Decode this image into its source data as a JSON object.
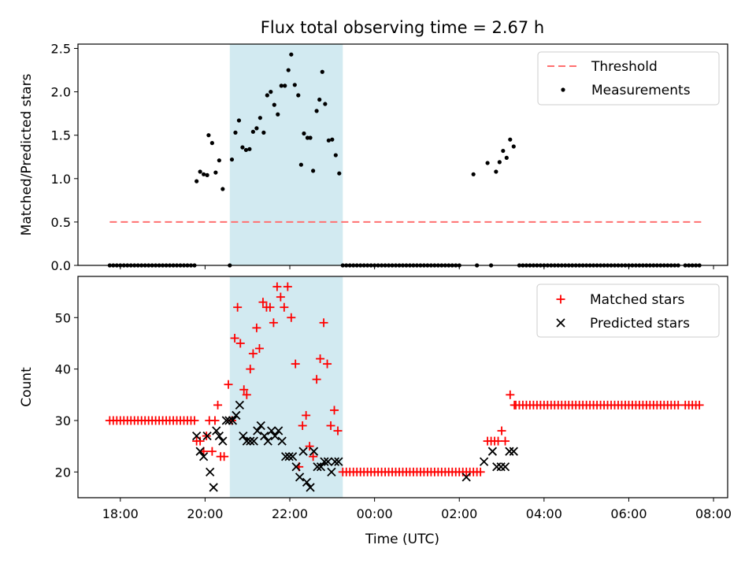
{
  "figure_title": "Flux total observing time = 2.67 h",
  "x_label": "Time (UTC)",
  "highlight": {
    "start": "20:35",
    "end": "23:15",
    "color": "#add8e6"
  },
  "x_ticks": [
    "18:00",
    "20:00",
    "22:00",
    "00:00",
    "02:00",
    "04:00",
    "06:00",
    "08:00"
  ],
  "chart_data": [
    {
      "type": "scatter",
      "ylabel": "Matched/Predicted stars",
      "xlim": [
        "17:00",
        "08:20"
      ],
      "ylim": [
        0,
        2.55
      ],
      "y_ticks": [
        "0.0",
        "0.5",
        "1.0",
        "1.5",
        "2.0",
        "2.5"
      ],
      "legend_position": "top-right",
      "threshold": {
        "name": "Threshold",
        "value": 0.5,
        "x_range": [
          "17:45",
          "07:45"
        ],
        "color": "#ff7070"
      },
      "measurements": {
        "name": "Measurements",
        "color": "#000000",
        "nonzero_points": [
          [
            "19:48",
            0.97
          ],
          [
            "19:53",
            1.08
          ],
          [
            "19:58",
            1.05
          ],
          [
            "20:03",
            1.04
          ],
          [
            "20:05",
            1.5
          ],
          [
            "20:10",
            1.41
          ],
          [
            "20:15",
            1.07
          ],
          [
            "20:20",
            1.21
          ],
          [
            "20:25",
            0.88
          ],
          [
            "20:38",
            1.22
          ],
          [
            "20:43",
            1.53
          ],
          [
            "20:48",
            1.67
          ],
          [
            "20:53",
            1.36
          ],
          [
            "20:58",
            1.33
          ],
          [
            "21:03",
            1.34
          ],
          [
            "21:08",
            1.54
          ],
          [
            "21:13",
            1.58
          ],
          [
            "21:18",
            1.7
          ],
          [
            "21:23",
            1.53
          ],
          [
            "21:28",
            1.96
          ],
          [
            "21:33",
            2.0
          ],
          [
            "21:38",
            1.85
          ],
          [
            "21:43",
            1.74
          ],
          [
            "21:48",
            2.07
          ],
          [
            "21:53",
            2.07
          ],
          [
            "21:58",
            2.25
          ],
          [
            "22:02",
            2.43
          ],
          [
            "22:07",
            2.08
          ],
          [
            "22:12",
            1.96
          ],
          [
            "22:16",
            1.16
          ],
          [
            "22:20",
            1.52
          ],
          [
            "22:25",
            1.47
          ],
          [
            "22:29",
            1.47
          ],
          [
            "22:33",
            1.09
          ],
          [
            "22:38",
            1.78
          ],
          [
            "22:42",
            1.91
          ],
          [
            "22:46",
            2.23
          ],
          [
            "22:50",
            1.86
          ],
          [
            "22:55",
            1.44
          ],
          [
            "23:00",
            1.45
          ],
          [
            "23:05",
            1.27
          ],
          [
            "23:10",
            1.06
          ],
          [
            "02:20",
            1.05
          ],
          [
            "02:40",
            1.18
          ],
          [
            "02:52",
            1.08
          ],
          [
            "02:57",
            1.19
          ],
          [
            "03:02",
            1.32
          ],
          [
            "03:07",
            1.24
          ],
          [
            "03:12",
            1.45
          ],
          [
            "03:17",
            1.37
          ]
        ],
        "zero_ranges": [
          [
            "17:45",
            "19:45"
          ],
          [
            "20:35",
            "20:35"
          ],
          [
            "23:15",
            "02:00"
          ],
          [
            "02:25",
            "02:27"
          ],
          [
            "02:45",
            "02:47"
          ],
          [
            "03:25",
            "07:10"
          ],
          [
            "07:20",
            "07:40"
          ]
        ]
      }
    },
    {
      "type": "scatter",
      "ylabel": "Count",
      "xlim": [
        "17:00",
        "08:20"
      ],
      "ylim": [
        15,
        58
      ],
      "y_ticks": [
        "20",
        "30",
        "40",
        "50"
      ],
      "legend_position": "top-right",
      "series": [
        {
          "name": "Matched stars",
          "marker": "plus",
          "color": "#ff0000",
          "points": [
            [
              "19:48",
              26
            ],
            [
              "19:53",
              26
            ],
            [
              "19:58",
              24
            ],
            [
              "20:02",
              27
            ],
            [
              "20:06",
              30
            ],
            [
              "20:10",
              24
            ],
            [
              "20:14",
              30
            ],
            [
              "20:18",
              33
            ],
            [
              "20:22",
              23
            ],
            [
              "20:27",
              23
            ],
            [
              "20:33",
              37
            ],
            [
              "20:38",
              30
            ],
            [
              "20:42",
              46
            ],
            [
              "20:46",
              52
            ],
            [
              "20:50",
              45
            ],
            [
              "20:55",
              36
            ],
            [
              "20:59",
              35
            ],
            [
              "21:04",
              40
            ],
            [
              "21:08",
              43
            ],
            [
              "21:13",
              48
            ],
            [
              "21:17",
              44
            ],
            [
              "21:22",
              53
            ],
            [
              "21:27",
              52
            ],
            [
              "21:32",
              52
            ],
            [
              "21:37",
              49
            ],
            [
              "21:42",
              56
            ],
            [
              "21:47",
              54
            ],
            [
              "21:52",
              52
            ],
            [
              "21:57",
              56
            ],
            [
              "22:02",
              50
            ],
            [
              "22:08",
              41
            ],
            [
              "22:13",
              21
            ],
            [
              "22:18",
              29
            ],
            [
              "22:23",
              31
            ],
            [
              "22:28",
              25
            ],
            [
              "22:33",
              23
            ],
            [
              "22:38",
              38
            ],
            [
              "22:43",
              42
            ],
            [
              "22:48",
              49
            ],
            [
              "22:53",
              41
            ],
            [
              "22:58",
              29
            ],
            [
              "23:03",
              32
            ],
            [
              "23:08",
              28
            ],
            [
              "02:40",
              26
            ],
            [
              "02:45",
              26
            ],
            [
              "02:50",
              26
            ],
            [
              "02:55",
              26
            ],
            [
              "03:00",
              28
            ],
            [
              "03:05",
              26
            ],
            [
              "03:12",
              35
            ],
            [
              "03:18",
              33
            ]
          ],
          "constant_runs": [
            {
              "from": "17:45",
              "to": "19:45",
              "value": 30
            },
            {
              "from": "23:15",
              "to": "02:30",
              "value": 20
            },
            {
              "from": "03:20",
              "to": "07:10",
              "value": 33
            },
            {
              "from": "07:20",
              "to": "07:40",
              "value": 33
            }
          ]
        },
        {
          "name": "Predicted stars",
          "marker": "x",
          "color": "#000000",
          "points": [
            [
              "19:48",
              27
            ],
            [
              "19:53",
              24
            ],
            [
              "19:58",
              23
            ],
            [
              "20:03",
              27
            ],
            [
              "20:07",
              20
            ],
            [
              "20:12",
              17
            ],
            [
              "20:16",
              28
            ],
            [
              "20:20",
              27
            ],
            [
              "20:25",
              26
            ],
            [
              "20:30",
              30
            ],
            [
              "20:34",
              30
            ],
            [
              "20:39",
              30
            ],
            [
              "20:44",
              31
            ],
            [
              "20:49",
              33
            ],
            [
              "20:54",
              27
            ],
            [
              "20:59",
              26
            ],
            [
              "21:04",
              26
            ],
            [
              "21:09",
              26
            ],
            [
              "21:14",
              28
            ],
            [
              "21:19",
              29
            ],
            [
              "21:24",
              27
            ],
            [
              "21:29",
              26
            ],
            [
              "21:34",
              28
            ],
            [
              "21:39",
              27
            ],
            [
              "21:44",
              28
            ],
            [
              "21:49",
              26
            ],
            [
              "21:54",
              23
            ],
            [
              "21:59",
              23
            ],
            [
              "22:04",
              23
            ],
            [
              "22:09",
              21
            ],
            [
              "22:14",
              19
            ],
            [
              "22:19",
              24
            ],
            [
              "22:24",
              18
            ],
            [
              "22:29",
              17
            ],
            [
              "22:34",
              24
            ],
            [
              "22:39",
              21
            ],
            [
              "22:44",
              21
            ],
            [
              "22:49",
              22
            ],
            [
              "22:54",
              22
            ],
            [
              "22:59",
              20
            ],
            [
              "23:04",
              22
            ],
            [
              "23:09",
              22
            ],
            [
              "02:10",
              19
            ],
            [
              "02:35",
              22
            ],
            [
              "02:47",
              24
            ],
            [
              "02:53",
              21
            ],
            [
              "02:59",
              21
            ],
            [
              "03:05",
              21
            ],
            [
              "03:11",
              24
            ],
            [
              "03:17",
              24
            ]
          ]
        }
      ]
    }
  ]
}
